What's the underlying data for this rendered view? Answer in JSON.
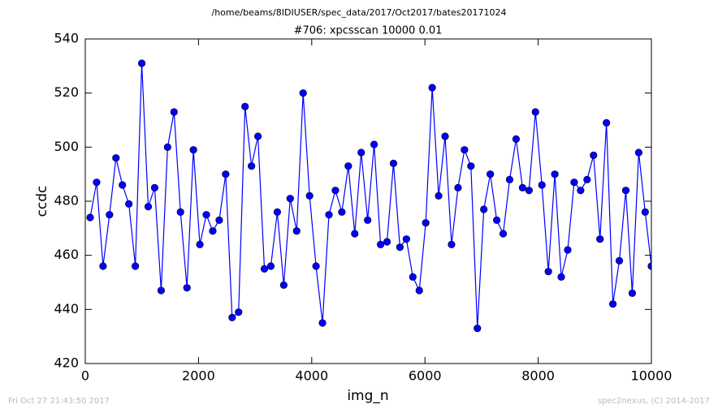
{
  "chart_data": {
    "type": "line",
    "suptitle": "/home/beams/8IDIUSER/spec_data/2017/Oct2017/bates20171024",
    "title": "#706: xpcsscan 10000 0.01",
    "xlabel": "img_n",
    "ylabel": "ccdc",
    "footer_left": "Fri Oct 27 21:43:50 2017",
    "footer_right": "spec2nexus, (C) 2014-2017",
    "x": [
      86,
      200,
      314,
      428,
      542,
      656,
      770,
      884,
      998,
      1112,
      1226,
      1340,
      1454,
      1568,
      1682,
      1796,
      1910,
      2024,
      2138,
      2252,
      2366,
      2480,
      2594,
      2708,
      2822,
      2936,
      3050,
      3164,
      3278,
      3392,
      3506,
      3620,
      3734,
      3848,
      3962,
      4076,
      4190,
      4304,
      4418,
      4532,
      4646,
      4760,
      4874,
      4988,
      5102,
      5216,
      5330,
      5444,
      5558,
      5672,
      5786,
      5900,
      6014,
      6128,
      6242,
      6356,
      6470,
      6584,
      6698,
      6812,
      6926,
      7040,
      7154,
      7268,
      7382,
      7496,
      7610,
      7724,
      7838,
      7952,
      8066,
      8180,
      8294,
      8408,
      8522,
      8636,
      8750,
      8864,
      8978,
      9092,
      9206,
      9320,
      9434,
      9548,
      9662,
      9776,
      9890,
      10000
    ],
    "series": [
      {
        "name": "ccdc",
        "color": "#0000ff",
        "values": [
          474,
          487,
          456,
          475,
          496,
          486,
          479,
          456,
          531,
          478,
          485,
          447,
          500,
          513,
          476,
          448,
          499,
          464,
          475,
          469,
          473,
          490,
          437,
          439,
          515,
          493,
          504,
          455,
          456,
          476,
          449,
          481,
          469,
          520,
          482,
          456,
          435,
          475,
          484,
          476,
          493,
          468,
          498,
          473,
          501,
          464,
          465,
          494,
          463,
          466,
          452,
          447,
          472,
          522,
          482,
          504,
          464,
          485,
          499,
          493,
          433,
          477,
          490,
          473,
          468,
          488,
          503,
          485,
          484,
          513,
          486,
          454,
          490,
          452,
          462,
          487,
          484,
          488,
          497,
          466,
          509,
          442,
          458,
          484,
          446,
          498,
          476,
          456
        ]
      }
    ],
    "xlim": [
      0,
      10000
    ],
    "xticks": [
      0,
      2000,
      4000,
      6000,
      8000,
      10000
    ],
    "ylim": [
      420,
      540
    ],
    "yticks": [
      420,
      440,
      460,
      480,
      500,
      520,
      540
    ],
    "grid": false
  }
}
